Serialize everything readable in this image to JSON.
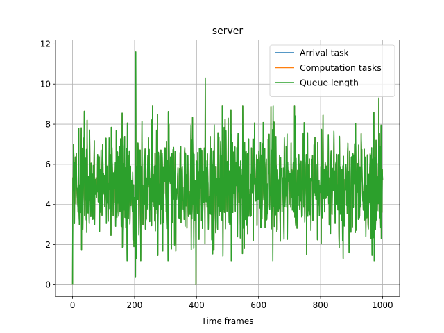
{
  "chart_data": {
    "type": "line",
    "title": "server",
    "xlabel": "Time frames",
    "ylabel": "",
    "xlim": [
      -55,
      1055
    ],
    "ylim": [
      -0.58,
      12.2
    ],
    "xticks": [
      0,
      200,
      400,
      600,
      800,
      1000
    ],
    "yticks": [
      0,
      2,
      4,
      6,
      8,
      10,
      12
    ],
    "grid": true,
    "legend_position": "top-right",
    "n_points": 1001,
    "series": [
      {
        "name": "Arrival task",
        "color": "#1f77b4",
        "mean": 4.9,
        "range": [
          0.0,
          11.6
        ]
      },
      {
        "name": "Computation tasks",
        "color": "#ff7f0e",
        "mean": 4.9,
        "range": [
          0.0,
          11.6
        ]
      },
      {
        "name": "Queue length",
        "color": "#2ca02c",
        "mean": 4.9,
        "range": [
          0.0,
          11.6
        ]
      }
    ],
    "notable_points": [
      {
        "x": 0,
        "y": 0.0
      },
      {
        "x": 3,
        "y": 7.0
      },
      {
        "x": 203,
        "y": 0.4
      },
      {
        "x": 204,
        "y": 11.6
      },
      {
        "x": 398,
        "y": 0.0
      },
      {
        "x": 428,
        "y": 10.3
      },
      {
        "x": 988,
        "y": 9.3
      },
      {
        "x": 996,
        "y": 2.3
      },
      {
        "x": 1000,
        "y": 5.2
      }
    ]
  }
}
